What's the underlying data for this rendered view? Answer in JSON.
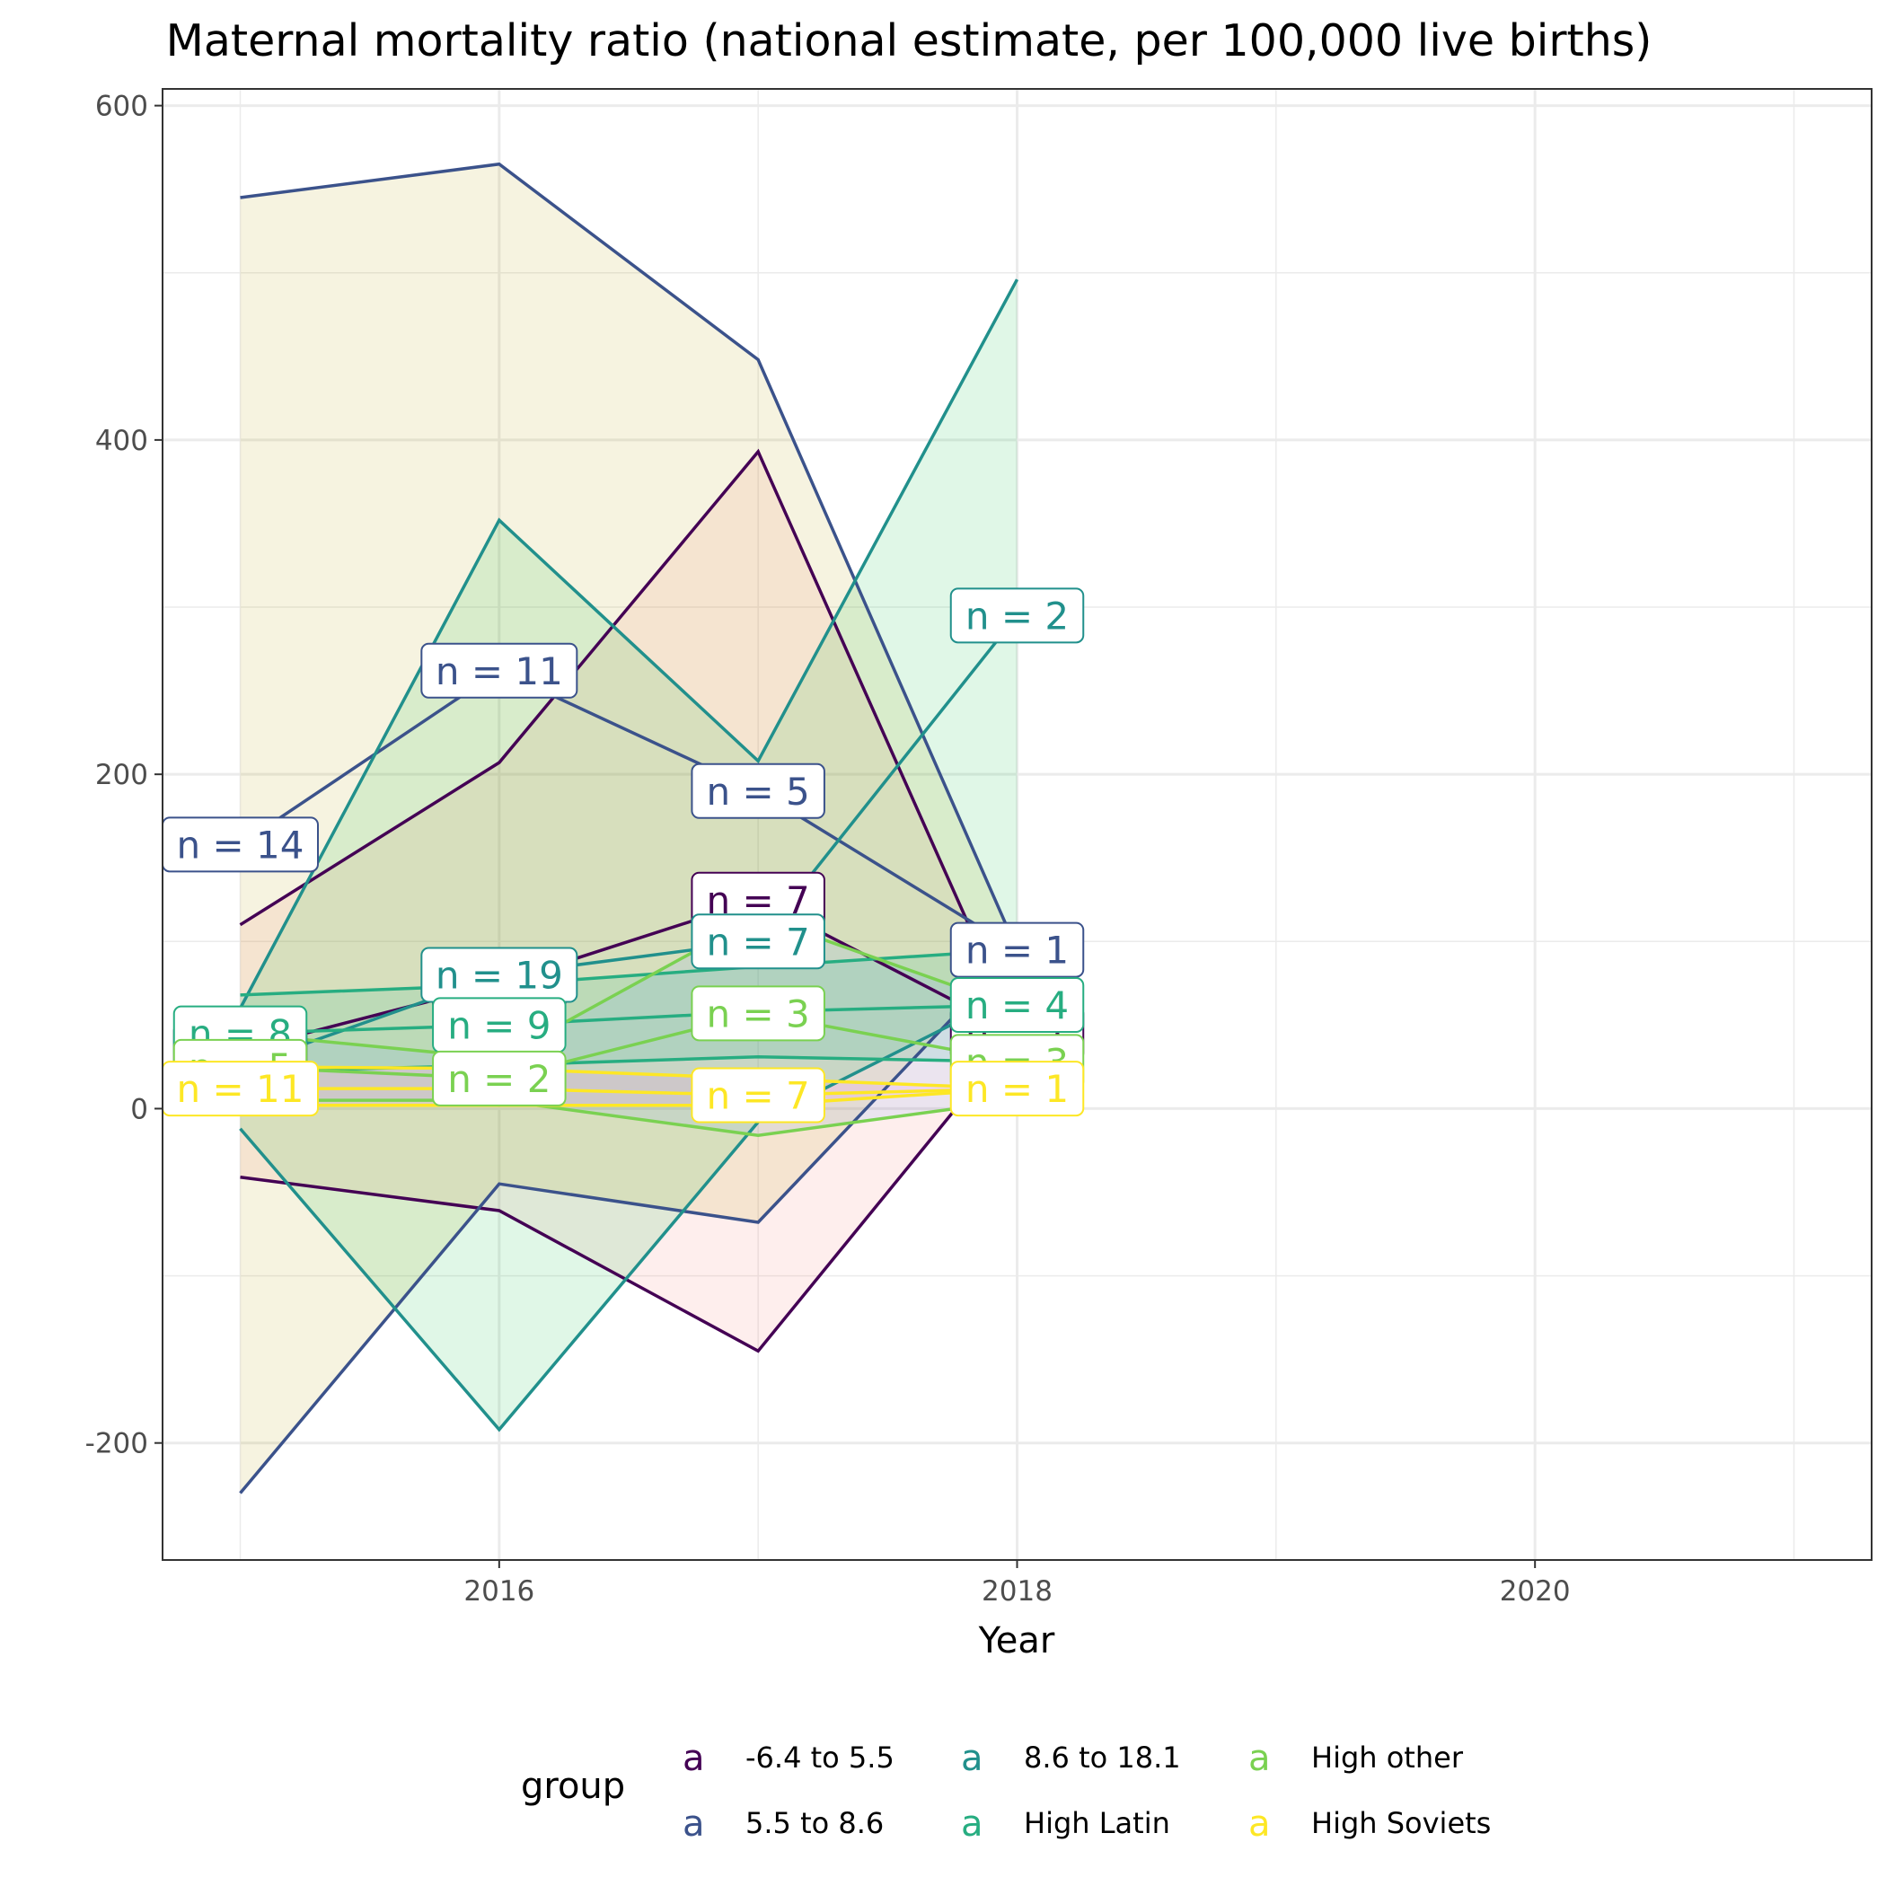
{
  "chart_data": {
    "type": "line",
    "title": "Maternal mortality ratio (national estimate, per 100,000 live births)",
    "xlabel": "Year",
    "ylabel": "",
    "xlim": [
      2014.7,
      2021.3
    ],
    "ylim": [
      -270,
      610
    ],
    "x_ticks": [
      2016,
      2018,
      2020
    ],
    "y_ticks": [
      -200,
      0,
      200,
      400,
      600
    ],
    "x_tick_labels": [
      "2016",
      "2018",
      "2020"
    ],
    "y_tick_labels": [
      "-200",
      "0",
      "200",
      "400",
      "600"
    ],
    "grid": true,
    "legend": {
      "title": "group",
      "position": "bottom",
      "key_glyph": "a"
    },
    "series": [
      {
        "name": "-6.4 to 5.5",
        "color": "#440154",
        "ribbon_color": "#F8766D",
        "x": [
          2015,
          2016,
          2017,
          2018
        ],
        "mean": [
          35,
          75,
          125,
          45
        ],
        "upper": [
          110,
          207,
          393,
          45
        ],
        "lower": [
          -41,
          -61,
          -145,
          45
        ],
        "labels": [
          {
            "x": 2015,
            "y": 35,
            "text": "n = 8"
          },
          {
            "x": 2016,
            "y": 75,
            "text": "n = 8"
          },
          {
            "x": 2017,
            "y": 125,
            "text": "n = 7"
          },
          {
            "x": 2018,
            "y": 45,
            "text": "n = 1"
          }
        ]
      },
      {
        "name": "5.5 to 8.6",
        "color": "#3B528B",
        "ribbon_color": "#B79F00",
        "x": [
          2015,
          2016,
          2017,
          2018
        ],
        "mean": [
          158,
          262,
          190,
          95
        ],
        "upper": [
          545,
          565,
          448,
          95
        ],
        "lower": [
          -230,
          -45,
          -68,
          95
        ],
        "labels": [
          {
            "x": 2015,
            "y": 158,
            "text": "n = 14"
          },
          {
            "x": 2016,
            "y": 262,
            "text": "n = 11"
          },
          {
            "x": 2017,
            "y": 190,
            "text": "n = 5"
          },
          {
            "x": 2018,
            "y": 95,
            "text": "n = 1"
          }
        ]
      },
      {
        "name": "8.6 to 18.1",
        "color": "#21908C",
        "ribbon_color": "#00BA38",
        "x": [
          2015,
          2016,
          2017,
          2018
        ],
        "mean": [
          25,
          80,
          100,
          295
        ],
        "upper": [
          60,
          352,
          208,
          496
        ],
        "lower": [
          -12,
          -192,
          -8,
          70
        ],
        "labels": [
          {
            "x": 2016,
            "y": 80,
            "text": "n = 19"
          },
          {
            "x": 2017,
            "y": 100,
            "text": "n = 7"
          },
          {
            "x": 2018,
            "y": 295,
            "text": "n = 2"
          }
        ]
      },
      {
        "name": "High Latin",
        "color": "#27AD81",
        "ribbon_color": "#00C08B",
        "x": [
          2015,
          2016,
          2017,
          2018
        ],
        "mean": [
          45,
          50,
          58,
          62
        ],
        "upper": [
          68,
          74,
          85,
          95
        ],
        "lower": [
          22,
          26,
          31,
          28
        ],
        "labels": [
          {
            "x": 2015,
            "y": 45,
            "text": "n = 8"
          },
          {
            "x": 2016,
            "y": 50,
            "text": "n = 9"
          },
          {
            "x": 2018,
            "y": 62,
            "text": "n = 4"
          }
        ]
      },
      {
        "name": "High other",
        "color": "#7AD151",
        "ribbon_color": "#619CFF",
        "x": [
          2015,
          2016,
          2017,
          2018
        ],
        "mean": [
          25,
          18,
          57,
          28
        ],
        "upper": [
          45,
          30,
          115,
          60
        ],
        "lower": [
          5,
          5,
          -16,
          5
        ],
        "labels": [
          {
            "x": 2015,
            "y": 25,
            "text": "n = 5"
          },
          {
            "x": 2016,
            "y": 18,
            "text": "n = 2"
          },
          {
            "x": 2017,
            "y": 57,
            "text": "n = 3"
          },
          {
            "x": 2018,
            "y": 28,
            "text": "n = 3"
          }
        ]
      },
      {
        "name": "High Soviets",
        "color": "#FDE725",
        "ribbon_color": "#F564E3",
        "x": [
          2015,
          2016,
          2017,
          2018
        ],
        "mean": [
          12,
          12,
          8,
          12
        ],
        "upper": [
          25,
          24,
          18,
          12
        ],
        "lower": [
          2,
          2,
          2,
          12
        ],
        "labels": [
          {
            "x": 2015,
            "y": 12,
            "text": "n = 11"
          },
          {
            "x": 2017,
            "y": 8,
            "text": "n = 7"
          },
          {
            "x": 2018,
            "y": 12,
            "text": "n = 1"
          }
        ]
      }
    ]
  }
}
